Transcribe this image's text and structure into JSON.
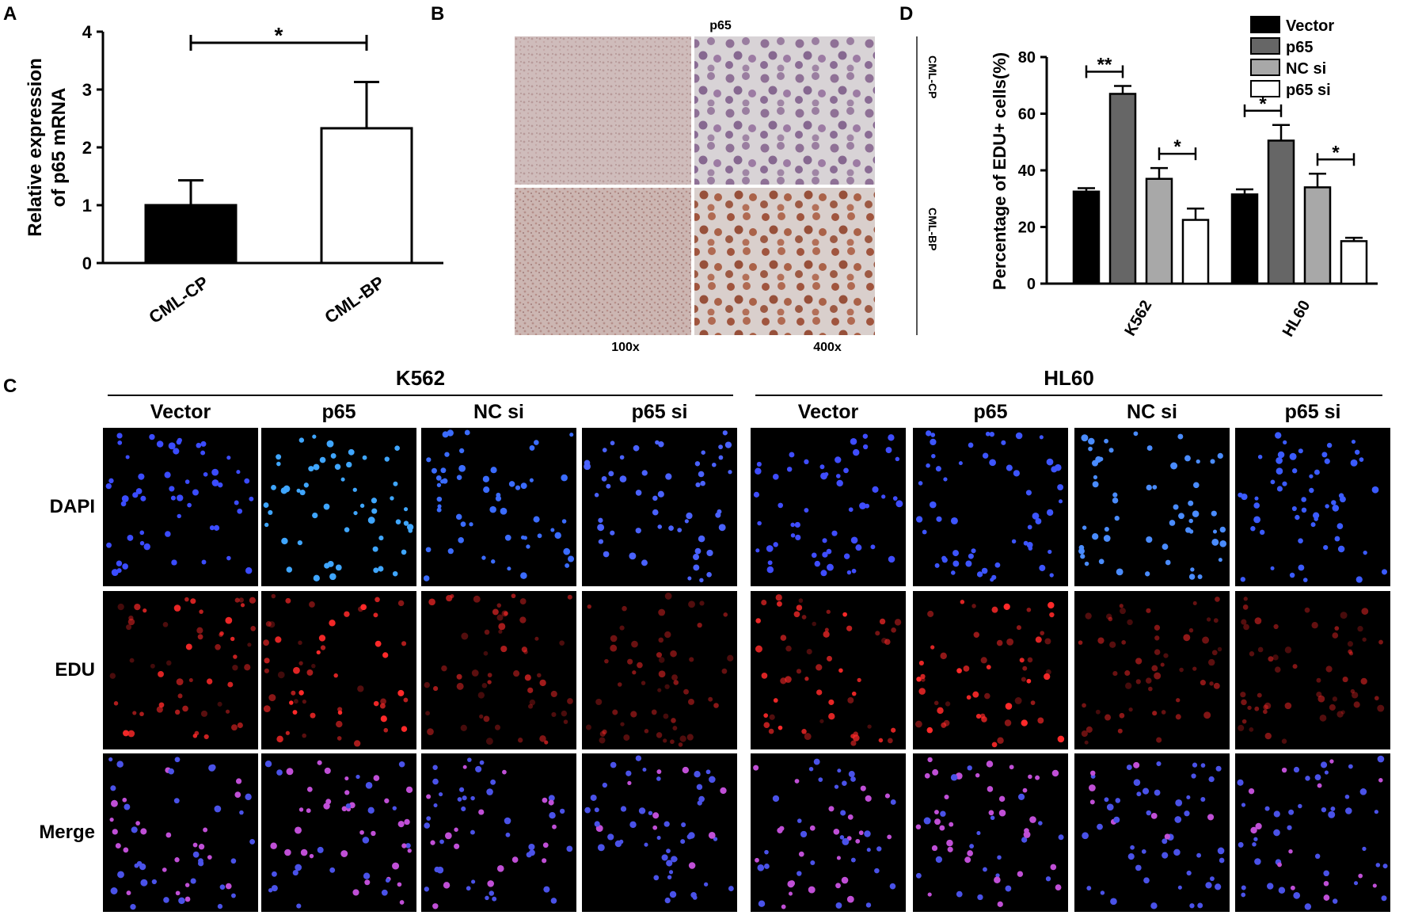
{
  "panels": {
    "a": "A",
    "b": "B",
    "c": "C",
    "d": "D"
  },
  "panel_b": {
    "title": "p65",
    "mag_left": "100x",
    "mag_right": "400x",
    "row_top": "CML-CP",
    "row_bottom": "CML-BP"
  },
  "panel_c": {
    "group1": "K562",
    "group2": "HL60",
    "columns": [
      "Vector",
      "p65",
      "NC si",
      "p65 si"
    ],
    "rows": [
      "DAPI",
      "EDU",
      "Merge"
    ]
  },
  "chart_data": [
    {
      "type": "bar",
      "panel": "A",
      "ylabel_line1": "Relative expression",
      "ylabel_line2": "of p65 mRNA",
      "categories": [
        "CML-CP",
        "CML-BP"
      ],
      "values": [
        1.0,
        2.33
      ],
      "errors": [
        0.43,
        0.8
      ],
      "ylim": [
        0,
        4
      ],
      "yticks": [
        "0",
        "1",
        "2",
        "3",
        "4"
      ],
      "significance": "*",
      "colors": [
        "#000000",
        "#ffffff"
      ]
    },
    {
      "type": "bar",
      "panel": "D",
      "ylabel": "Percentage of EDU+ cells(%)",
      "categories": [
        "K562",
        "HL60"
      ],
      "ylim": [
        0,
        80
      ],
      "yticks": [
        "0",
        "20",
        "40",
        "60",
        "80"
      ],
      "series": [
        {
          "name": "Vector",
          "color": "#000000",
          "values": [
            32.5,
            31.5
          ],
          "errors": [
            1.2,
            1.8
          ]
        },
        {
          "name": "p65",
          "color": "#666666",
          "values": [
            67,
            50.5
          ],
          "errors": [
            2.8,
            5.5
          ]
        },
        {
          "name": "NC si",
          "color": "#a8a8a8",
          "values": [
            37,
            34
          ],
          "errors": [
            3.8,
            4.8
          ]
        },
        {
          "name": "p65 si",
          "color": "#ffffff",
          "values": [
            22.5,
            15
          ],
          "errors": [
            4.0,
            1.2
          ]
        }
      ],
      "significance": [
        {
          "group": 0,
          "pair": [
            0,
            1
          ],
          "label": "**"
        },
        {
          "group": 0,
          "pair": [
            2,
            3
          ],
          "label": "*"
        },
        {
          "group": 1,
          "pair": [
            0,
            1
          ],
          "label": "*"
        },
        {
          "group": 1,
          "pair": [
            2,
            3
          ],
          "label": "*"
        }
      ]
    }
  ]
}
